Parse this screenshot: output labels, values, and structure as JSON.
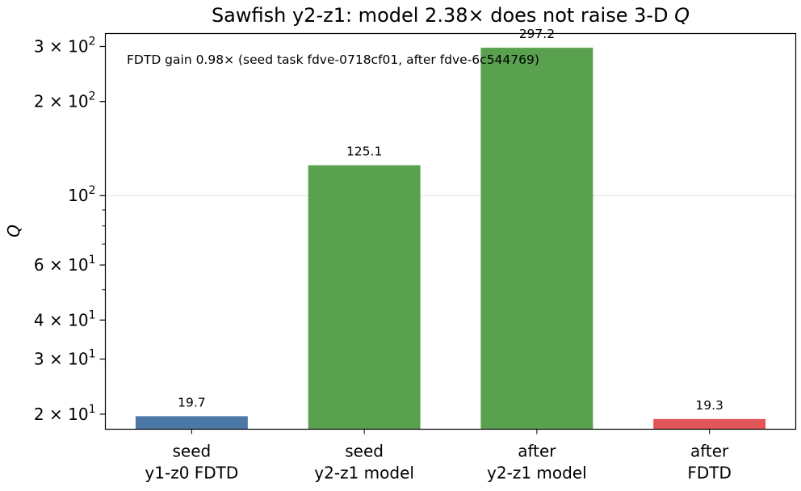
{
  "chart_data": {
    "type": "bar",
    "title": "Sawfish y2-z1: model 2.38× does not raise 3-D ",
    "title_italic": "Q",
    "ylabel": "Q",
    "xlabel": "",
    "yscale": "log",
    "ylim": [
      17.9,
      330
    ],
    "categories": [
      [
        "seed",
        "y1-z0 FDTD"
      ],
      [
        "seed",
        "y2-z1 model"
      ],
      [
        "after",
        "y2-z1 model"
      ],
      [
        "after",
        "FDTD"
      ]
    ],
    "values": [
      19.7,
      125.1,
      297.2,
      19.3
    ],
    "value_labels": [
      "19.7",
      "125.1",
      "297.2",
      "19.3"
    ],
    "bar_colors": [
      "#4c78a8",
      "#59a14f",
      "#59a14f",
      "#e15759"
    ],
    "y_ticks": [
      {
        "value": 20,
        "mant": "2",
        "exp": "1"
      },
      {
        "value": 30,
        "mant": "3",
        "exp": "1"
      },
      {
        "value": 40,
        "mant": "4",
        "exp": "1"
      },
      {
        "value": 60,
        "mant": "6",
        "exp": "1"
      },
      {
        "value": 100,
        "mant": "",
        "exp": "2"
      },
      {
        "value": 200,
        "mant": "2",
        "exp": "2"
      },
      {
        "value": 300,
        "mant": "3",
        "exp": "2"
      }
    ],
    "y_minor_ticks": [
      50,
      70,
      80,
      90
    ],
    "grid_lines": [
      100
    ],
    "annotation": "FDTD gain 0.98×  (seed task fdve-0718cf01, after fdve-6c544769)"
  }
}
